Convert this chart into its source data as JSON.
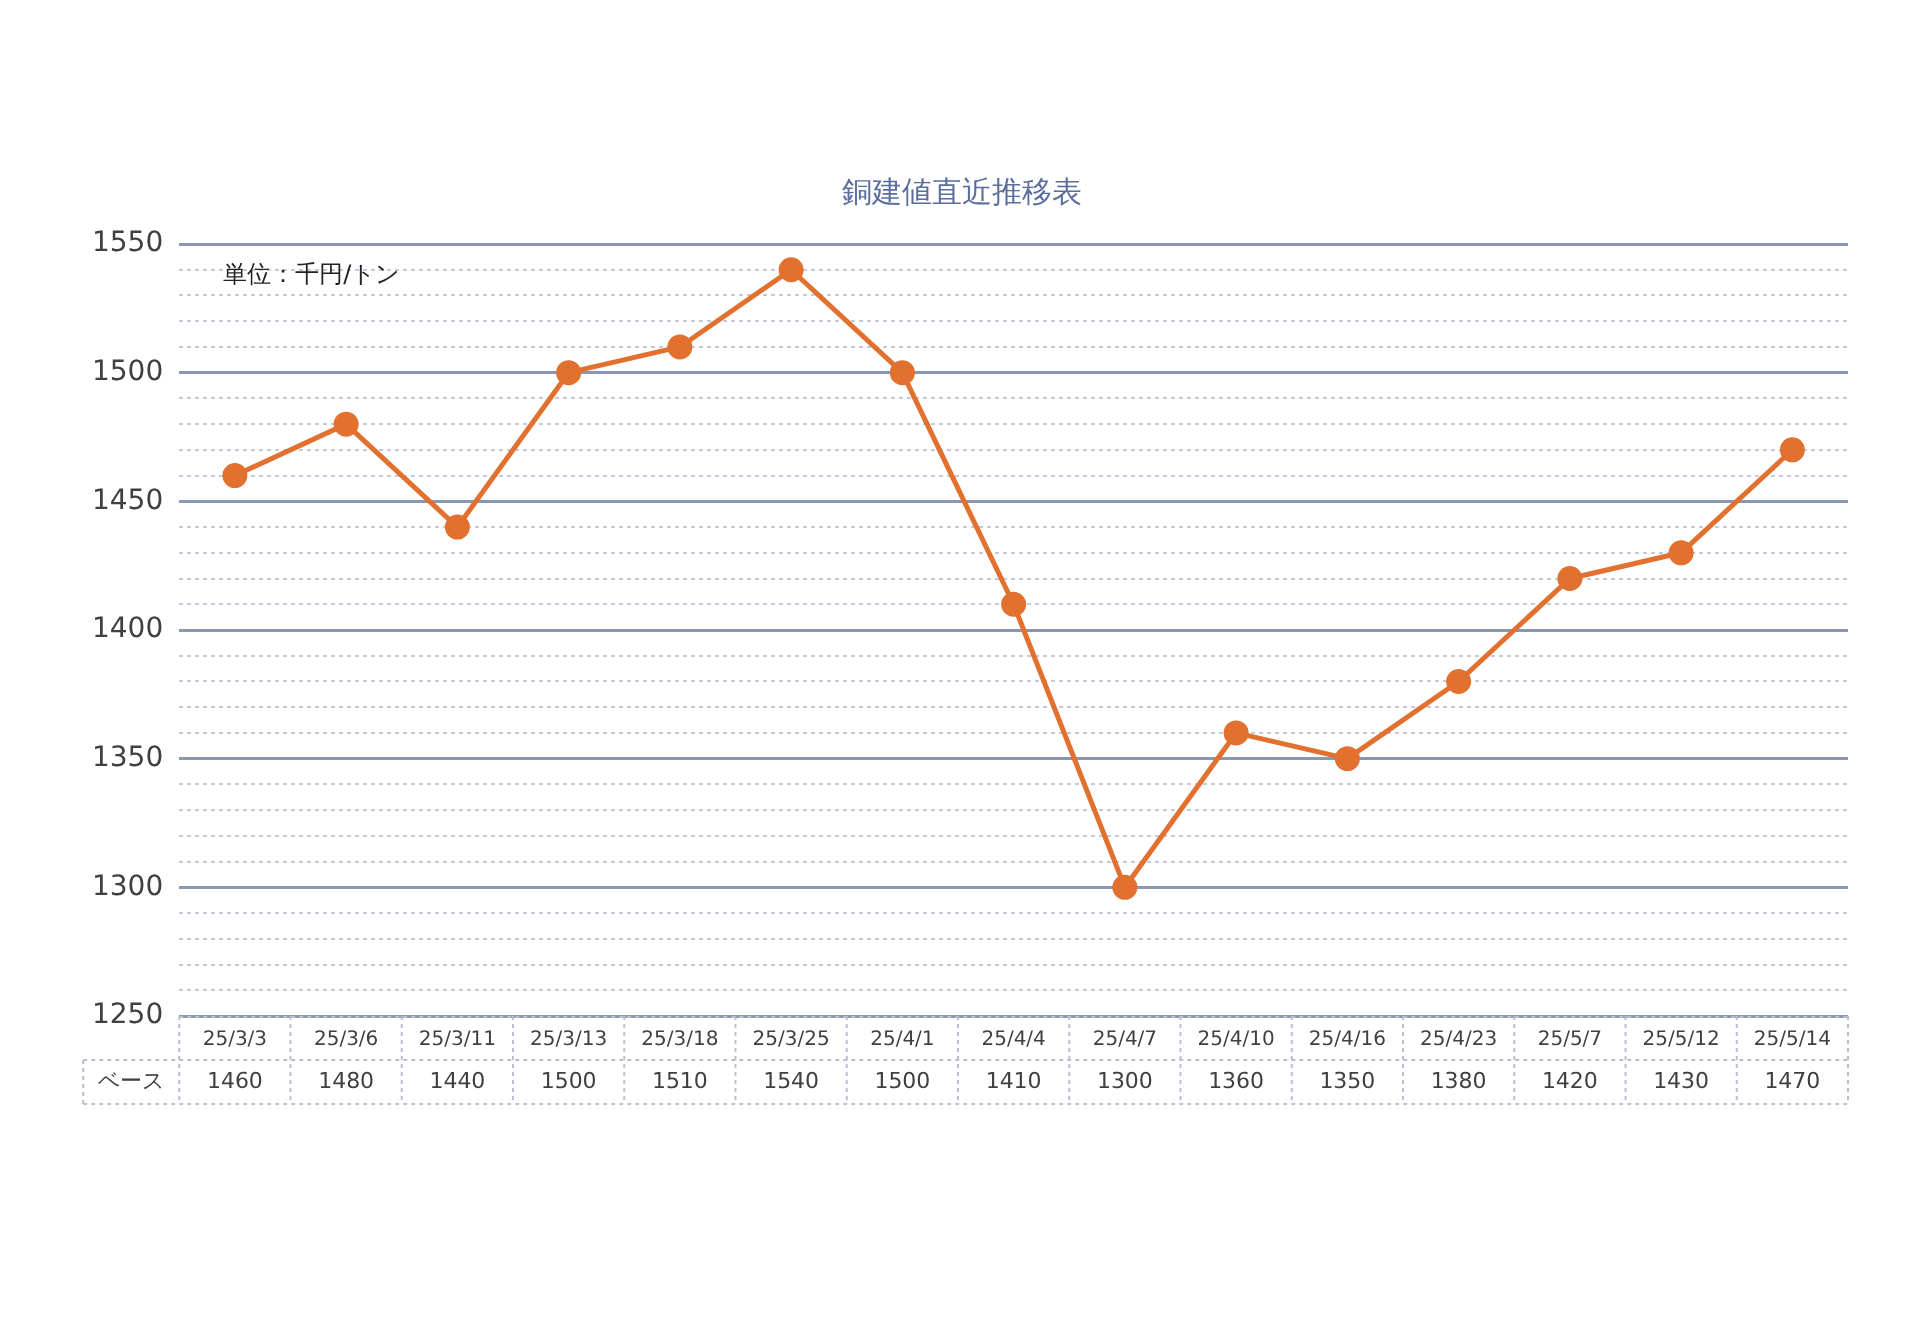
{
  "chart_data": {
    "type": "line",
    "title": "銅建値直近推移表",
    "annotations": [
      "単位：千円/トン"
    ],
    "categories": [
      "25/3/3",
      "25/3/6",
      "25/3/11",
      "25/3/13",
      "25/3/18",
      "25/3/25",
      "25/4/1",
      "25/4/4",
      "25/4/7",
      "25/4/10",
      "25/4/16",
      "25/4/23",
      "25/5/7",
      "25/5/12",
      "25/5/14"
    ],
    "series": [
      {
        "name": "ベース",
        "color": "#e2702e",
        "values": [
          1460,
          1480,
          1440,
          1500,
          1510,
          1540,
          1500,
          1410,
          1300,
          1360,
          1350,
          1380,
          1420,
          1430,
          1470
        ]
      }
    ],
    "ylim": [
      1250,
      1550
    ],
    "yticks": [
      1250,
      {
        "value": 1260,
        "label": null
      },
      {
        "value": 1270,
        "label": null
      },
      {
        "value": 1280,
        "label": null
      },
      {
        "value": 1290,
        "label": null
      },
      1300,
      {
        "value": 1310,
        "label": null
      },
      {
        "value": 1320,
        "label": null
      },
      {
        "value": 1330,
        "label": null
      },
      {
        "value": 1340,
        "label": null
      },
      1350,
      {
        "value": 1360,
        "label": null
      },
      {
        "value": 1370,
        "label": null
      },
      {
        "value": 1380,
        "label": null
      },
      {
        "value": 1390,
        "label": null
      },
      1400,
      {
        "value": 1410,
        "label": null
      },
      {
        "value": 1420,
        "label": null
      },
      {
        "value": 1430,
        "label": null
      },
      {
        "value": 1440,
        "label": null
      },
      1450,
      {
        "value": 1460,
        "label": null
      },
      {
        "value": 1470,
        "label": null
      },
      {
        "value": 1480,
        "label": null
      },
      {
        "value": 1490,
        "label": null
      },
      1500,
      {
        "value": 1510,
        "label": null
      },
      {
        "value": 1520,
        "label": null
      },
      {
        "value": 1530,
        "label": null
      },
      {
        "value": 1540,
        "label": null
      },
      1550
    ],
    "grid": "y",
    "marker": "circle",
    "line_style": "solid",
    "data_labels": true,
    "legend": false
  }
}
